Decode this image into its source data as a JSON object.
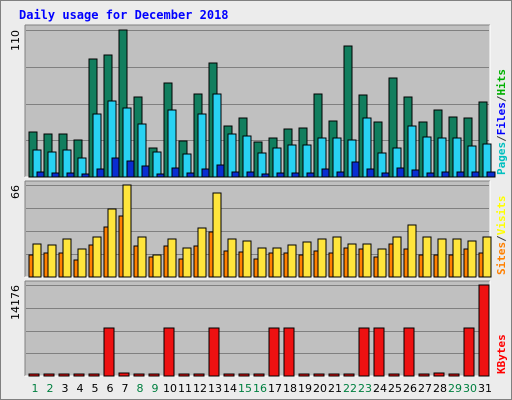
{
  "title": "Daily usage for December 2018",
  "colors": {
    "hits": "#117e5e",
    "files": "#28d2f3",
    "pages": "#0a2dd1",
    "visits": "#ff8000",
    "sites": "#ffe53c",
    "kbytes": "#ee1111",
    "weekday": "#008040",
    "weekend": "#008040",
    "panel": "#c0c0c0"
  },
  "chart_data": [
    {
      "type": "bar",
      "name": "hits-files-pages",
      "max_label": "110",
      "ylim": [
        0,
        110
      ],
      "legend": [
        {
          "label": "Pages",
          "color": "#00c0c0"
        },
        {
          "label": "/",
          "color": "#404040"
        },
        {
          "label": "Files",
          "color": "#0000ff"
        },
        {
          "label": "/",
          "color": "#404040"
        },
        {
          "label": "Hits",
          "color": "#00b000"
        }
      ],
      "categories": [
        "1",
        "2",
        "3",
        "4",
        "5",
        "6",
        "7",
        "8",
        "9",
        "10",
        "11",
        "12",
        "13",
        "14",
        "15",
        "16",
        "17",
        "18",
        "19",
        "20",
        "21",
        "22",
        "23",
        "24",
        "25",
        "26",
        "27",
        "28",
        "29",
        "30",
        "31"
      ],
      "series": [
        {
          "name": "Hits",
          "values": [
            34,
            32,
            32,
            28,
            88,
            91,
            110,
            60,
            22,
            70,
            27,
            62,
            85,
            38,
            44,
            26,
            29,
            36,
            37,
            62,
            42,
            98,
            61,
            41,
            74,
            60,
            41,
            50,
            45,
            44,
            56
          ]
        },
        {
          "name": "Files",
          "values": [
            20,
            19,
            20,
            14,
            47,
            57,
            52,
            40,
            19,
            50,
            17,
            47,
            62,
            32,
            31,
            18,
            22,
            24,
            24,
            29,
            29,
            28,
            44,
            18,
            22,
            38,
            30,
            29,
            29,
            23,
            25
          ]
        },
        {
          "name": "Pages",
          "values": [
            4,
            3,
            3,
            2,
            6,
            14,
            12,
            8,
            2,
            7,
            3,
            6,
            9,
            4,
            4,
            2,
            3,
            3,
            3,
            6,
            4,
            11,
            6,
            3,
            7,
            5,
            3,
            4,
            4,
            4,
            4
          ]
        }
      ]
    },
    {
      "type": "bar",
      "name": "visits-sites",
      "max_label": "66",
      "ylim": [
        0,
        66
      ],
      "legend": [
        {
          "label": "Sites",
          "color": "#ff8000"
        },
        {
          "label": "/",
          "color": "#404040"
        },
        {
          "label": "Visits",
          "color": "#ffff00"
        }
      ],
      "categories": [
        "1",
        "2",
        "3",
        "4",
        "5",
        "6",
        "7",
        "8",
        "9",
        "10",
        "11",
        "12",
        "13",
        "14",
        "15",
        "16",
        "17",
        "18",
        "19",
        "20",
        "21",
        "22",
        "23",
        "24",
        "25",
        "26",
        "27",
        "28",
        "29",
        "30",
        "31"
      ],
      "series": [
        {
          "name": "Visits",
          "values": [
            16,
            17,
            17,
            12,
            23,
            36,
            44,
            22,
            14,
            22,
            13,
            22,
            32,
            19,
            18,
            13,
            17,
            17,
            16,
            19,
            17,
            21,
            20,
            14,
            24,
            20,
            16,
            16,
            16,
            20,
            17
          ]
        },
        {
          "name": "Sites",
          "values": [
            24,
            23,
            27,
            20,
            29,
            49,
            66,
            29,
            16,
            27,
            21,
            35,
            60,
            27,
            26,
            21,
            21,
            23,
            25,
            27,
            29,
            24,
            24,
            20,
            29,
            37,
            29,
            27,
            27,
            26,
            29
          ]
        }
      ]
    },
    {
      "type": "bar",
      "name": "kbytes",
      "max_label": "14176",
      "ylim": [
        0,
        14176
      ],
      "legend": [
        {
          "label": "KBytes",
          "color": "#ff0000"
        }
      ],
      "categories": [
        "1",
        "2",
        "3",
        "4",
        "5",
        "6",
        "7",
        "8",
        "9",
        "10",
        "11",
        "12",
        "13",
        "14",
        "15",
        "16",
        "17",
        "18",
        "19",
        "20",
        "21",
        "22",
        "23",
        "24",
        "25",
        "26",
        "27",
        "28",
        "29",
        "30",
        "31"
      ],
      "series": [
        {
          "name": "KBytes",
          "values": [
            300,
            300,
            300,
            300,
            300,
            7400,
            500,
            300,
            300,
            7400,
            300,
            300,
            7400,
            300,
            300,
            300,
            7400,
            7400,
            300,
            300,
            300,
            300,
            7400,
            7400,
            300,
            7400,
            300,
            500,
            300,
            7400,
            14176
          ]
        }
      ]
    }
  ],
  "weekend_days": [
    "1",
    "2",
    "8",
    "9",
    "15",
    "16",
    "22",
    "23",
    "29",
    "30"
  ]
}
